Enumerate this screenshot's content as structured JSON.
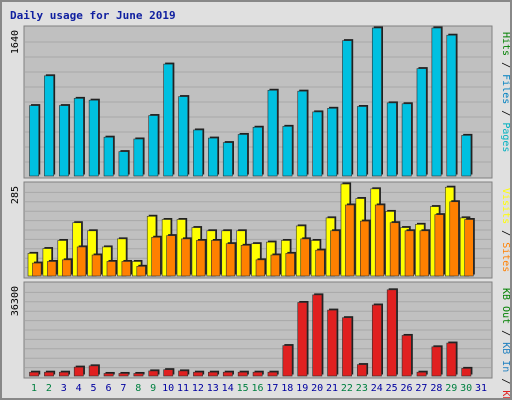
{
  "title": "Daily usage for June 2019",
  "colors": {
    "hits": "#00c0e0",
    "files": "#0080c0",
    "pages": "#00b0c0",
    "visits": "#ffff00",
    "sites": "#ff8000",
    "kb_in": "#2080c0",
    "kb_out": "#008000",
    "kb_f": "#e02020",
    "weekend_label": "#008040",
    "weekday_label": "#0000a0",
    "title": "#1020a0"
  },
  "chart_data": [
    {
      "type": "bar",
      "panel": "top",
      "ytick": "1640",
      "ylim": [
        0,
        1640
      ],
      "legend": [
        {
          "label": "Pages",
          "color": "#00b0c0"
        },
        {
          "label": "Files",
          "color": "#0080c0"
        },
        {
          "label": "Hits",
          "color": "#008000"
        }
      ],
      "categories": [
        "1",
        "2",
        "3",
        "4",
        "5",
        "6",
        "7",
        "8",
        "9",
        "10",
        "11",
        "12",
        "13",
        "14",
        "15",
        "16",
        "17",
        "18",
        "19",
        "20",
        "21",
        "22",
        "23",
        "24",
        "25",
        "26",
        "27",
        "28",
        "29",
        "30",
        "31"
      ],
      "series": [
        {
          "name": "Hits",
          "values": [
            780,
            1110,
            780,
            860,
            840,
            430,
            270,
            410,
            670,
            1240,
            880,
            510,
            420,
            370,
            460,
            540,
            950,
            550,
            940,
            710,
            750,
            1500,
            770,
            1690,
            810,
            800,
            1190,
            1690,
            1560,
            450,
            0
          ]
        }
      ]
    },
    {
      "type": "bar",
      "panel": "middle",
      "ytick": "285",
      "ylim": [
        0,
        285
      ],
      "legend": [
        {
          "label": "Sites",
          "color": "#ff8000"
        },
        {
          "label": "Visits",
          "color": "#ffff00"
        }
      ],
      "categories": [
        "1",
        "2",
        "3",
        "4",
        "5",
        "6",
        "7",
        "8",
        "9",
        "10",
        "11",
        "12",
        "13",
        "14",
        "15",
        "16",
        "17",
        "18",
        "19",
        "20",
        "21",
        "22",
        "23",
        "24",
        "25",
        "26",
        "27",
        "28",
        "29",
        "30",
        "31"
      ],
      "series": [
        {
          "name": "Visits",
          "values": [
            70,
            85,
            110,
            165,
            140,
            90,
            115,
            45,
            185,
            175,
            175,
            150,
            140,
            140,
            140,
            100,
            105,
            110,
            155,
            110,
            180,
            285,
            240,
            270,
            200,
            150,
            160,
            215,
            275,
            180,
            0
          ]
        },
        {
          "name": "Sites",
          "values": [
            40,
            45,
            50,
            90,
            65,
            45,
            45,
            30,
            120,
            125,
            115,
            110,
            110,
            100,
            95,
            50,
            65,
            70,
            115,
            80,
            140,
            220,
            170,
            220,
            165,
            140,
            140,
            190,
            230,
            175,
            0
          ]
        }
      ]
    },
    {
      "type": "bar",
      "panel": "bottom",
      "ytick": "36300",
      "ylim": [
        0,
        36300
      ],
      "legend": [
        {
          "label": "KB F",
          "color": "#e02020"
        },
        {
          "label": "KB In",
          "color": "#2080c0"
        },
        {
          "label": "KB Out",
          "color": "#008000"
        }
      ],
      "categories": [
        "1",
        "2",
        "3",
        "4",
        "5",
        "6",
        "7",
        "8",
        "9",
        "10",
        "11",
        "12",
        "13",
        "14",
        "15",
        "16",
        "17",
        "18",
        "19",
        "20",
        "21",
        "22",
        "23",
        "24",
        "25",
        "26",
        "27",
        "28",
        "29",
        "30",
        "31"
      ],
      "series": [
        {
          "name": "KB F",
          "values": [
            1500,
            1500,
            1500,
            3500,
            4000,
            1000,
            1000,
            1000,
            2000,
            2500,
            2000,
            1500,
            1500,
            1500,
            1500,
            1500,
            1500,
            12000,
            29000,
            32000,
            26000,
            23000,
            4500,
            28000,
            34000,
            16000,
            1500,
            11500,
            13000,
            3000,
            0
          ]
        }
      ]
    }
  ],
  "weekend_days": [
    "1",
    "2",
    "8",
    "9",
    "15",
    "16",
    "22",
    "23",
    "29",
    "30"
  ]
}
